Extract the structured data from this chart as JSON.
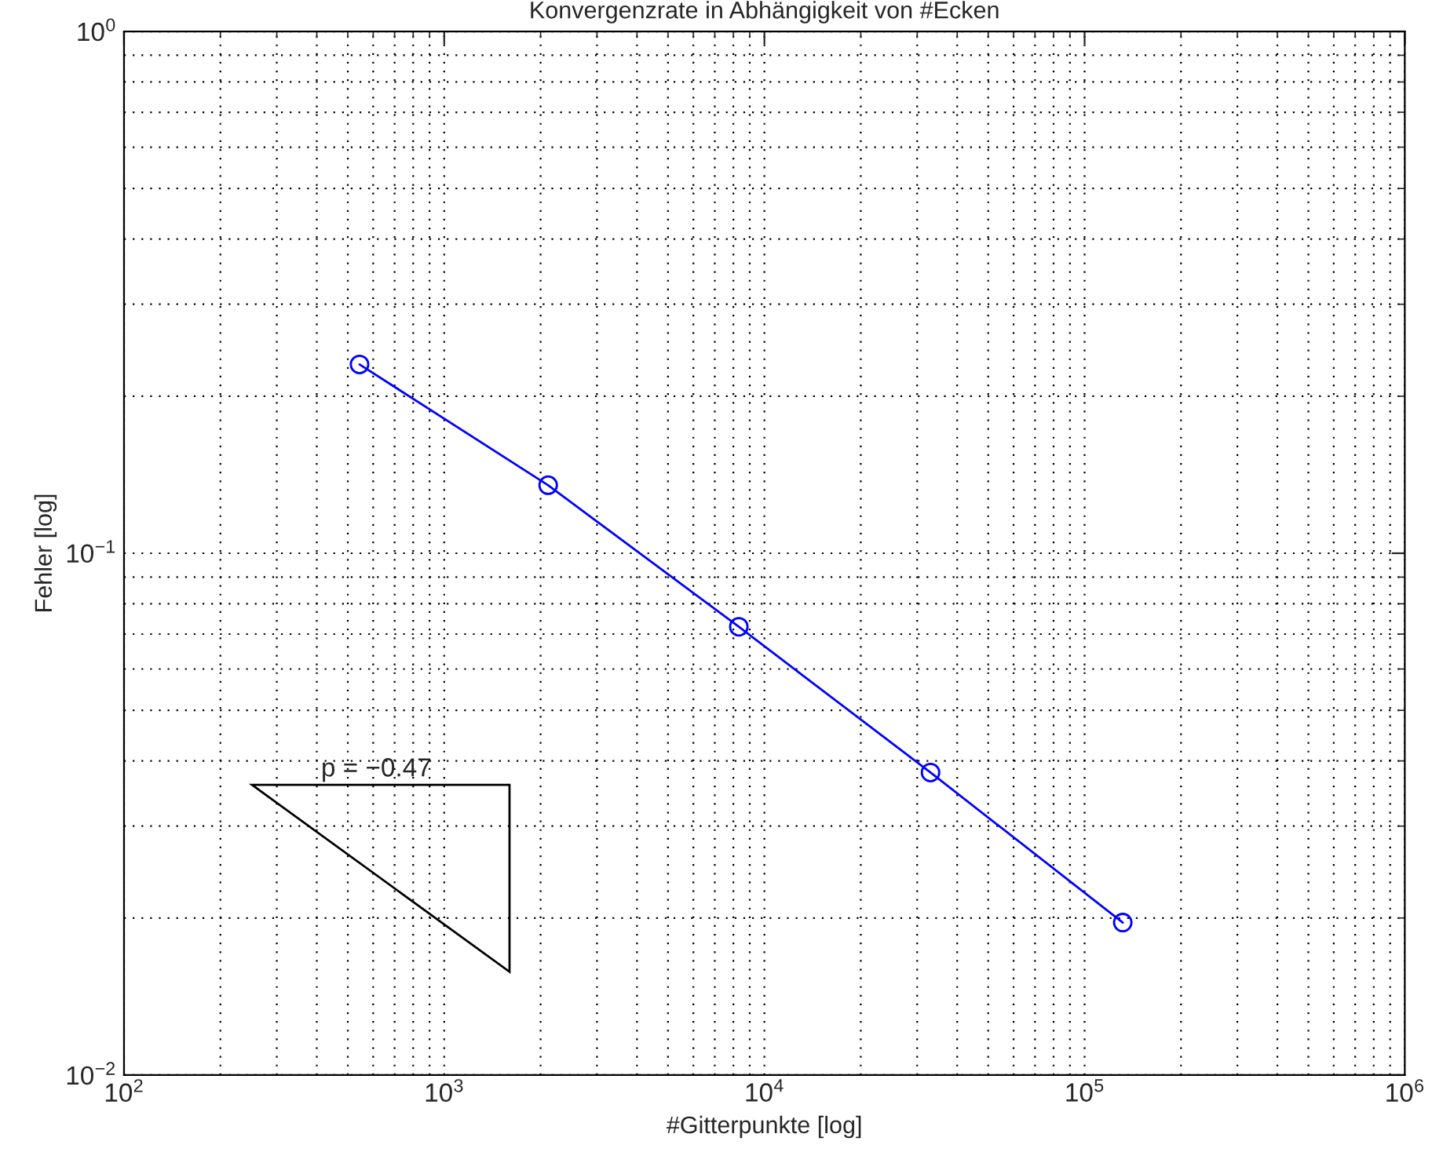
{
  "chart_data": {
    "type": "line",
    "title": "Konvergenzrate in Abhängigkeit von #Ecken",
    "xlabel": "#Gitterpunkte [log]",
    "ylabel": "Fehler [log]",
    "x": [
      544,
      2112,
      8320,
      33024,
      131584
    ],
    "series": [
      {
        "color": "#0000ff",
        "values": [
          0.23,
          0.135,
          0.0723,
          0.038,
          0.0196
        ]
      }
    ],
    "log": "xy",
    "marker": "circle",
    "line_style": "solid",
    "grid": true,
    "legend": false,
    "xlim": [
      100,
      1000000
    ],
    "ylim": [
      0.01,
      1
    ],
    "xticks": [
      {
        "value": 100,
        "label": "10$^{2}$"
      },
      {
        "value": 1000,
        "label": "10$^{3}$"
      },
      {
        "value": 10000,
        "label": "10$^{4}$"
      },
      {
        "value": 100000,
        "label": "10$^{5}$"
      },
      {
        "value": 1000000,
        "label": "10$^{6}$"
      }
    ],
    "yticks": [
      {
        "value": 0.01,
        "label": "10$^{−2}$"
      },
      {
        "value": 0.1,
        "label": "10$^{−1}$"
      },
      {
        "value": 1,
        "label": "10$^{0}$"
      }
    ],
    "annotations": [
      "p = −0.47"
    ]
  }
}
